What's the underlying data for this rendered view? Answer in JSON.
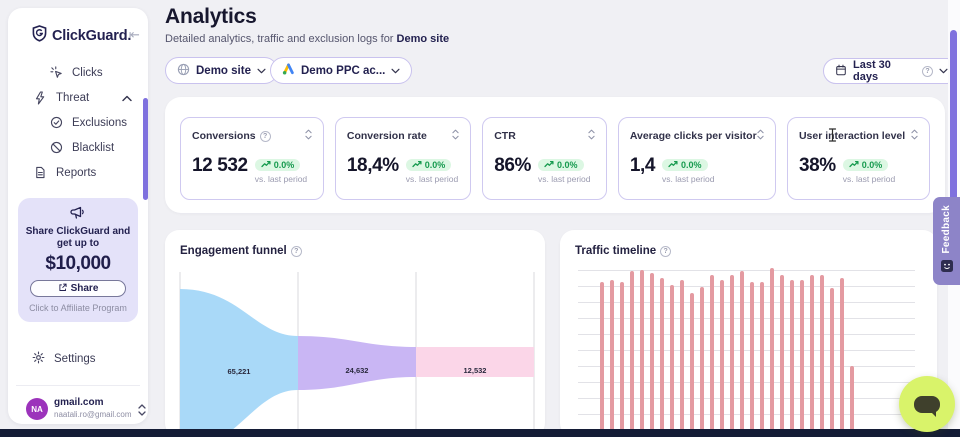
{
  "app": {
    "logo_text": "ClickGuard."
  },
  "sidebar": {
    "nav": [
      {
        "id": "clicks",
        "label": "Clicks",
        "icon": "clicks-icon",
        "indent": true
      },
      {
        "id": "threat",
        "label": "Threat",
        "icon": "threat-icon",
        "expanded": true
      },
      {
        "id": "exclusions",
        "label": "Exclusions",
        "icon": "exclusions-icon",
        "indent": true
      },
      {
        "id": "blacklist",
        "label": "Blacklist",
        "icon": "blacklist-icon",
        "indent": true
      },
      {
        "id": "reports",
        "label": "Reports",
        "icon": "reports-icon"
      }
    ],
    "promo": {
      "line1": "Share ClickGuard and",
      "line2": "get up to",
      "amount": "$10,000",
      "share_label": "Share",
      "affiliate_label": "Click to Affiliate Program"
    },
    "settings_label": "Settings",
    "account": {
      "initials": "NA",
      "name": "gmail.com",
      "email": "naatali.ro@gmail.com"
    }
  },
  "header": {
    "title": "Analytics",
    "subtitle_prefix": "Detailed analytics, traffic and exclusion logs for ",
    "subtitle_bold": "Demo site"
  },
  "filters": {
    "site_label": "Demo site",
    "ppc_label": "Demo PPC ac...",
    "date_label": "Last 30 days"
  },
  "stats": [
    {
      "label": "Conversions",
      "has_info": true,
      "value": "12 532",
      "change": "0.0%",
      "period": "vs. last period"
    },
    {
      "label": "Conversion rate",
      "has_info": false,
      "value": "18,4%",
      "change": "0.0%",
      "period": "vs. last period"
    },
    {
      "label": "CTR",
      "has_info": false,
      "value": "86%",
      "change": "0.0%",
      "period": "vs. last period"
    },
    {
      "label": "Average clicks per visitor",
      "has_info": false,
      "value": "1,4",
      "change": "0.0%",
      "period": "vs. last period"
    },
    {
      "label": "User interaction level",
      "has_info": false,
      "value": "38%",
      "change": "0.0%",
      "period": "vs. last period"
    }
  ],
  "feedback_label": "Feedback",
  "chart_data": [
    {
      "type": "funnel",
      "title": "Engagement funnel",
      "stages": [
        {
          "label": "65,221",
          "value": 65221,
          "color": "#a9d9f8"
        },
        {
          "label": "24,632",
          "value": 24632,
          "color": "#c9b6f4"
        },
        {
          "label": "12,532",
          "value": 12532,
          "color": "#fbd6e8"
        }
      ],
      "gridlines": "vertical",
      "legend": "none"
    },
    {
      "type": "bar",
      "title": "Traffic timeline",
      "bar_color": "#e49aa1",
      "gridlines": "horizontal",
      "x_tick_labels_visible": false,
      "y_tick_labels_visible": false,
      "values_percent_of_plot": [
        4,
        92,
        93,
        92,
        98,
        99,
        97,
        94,
        90,
        93,
        85,
        89,
        96,
        93,
        96,
        98,
        92,
        92,
        100,
        96,
        93,
        93,
        96,
        96,
        88,
        94,
        42
      ]
    }
  ],
  "colors": {
    "accent_purple": "#7f71de",
    "navy": "#232150",
    "page_bg": "#f0f0f4",
    "card_border": "#cfc9f0",
    "badge_green_bg": "#dcf7e3",
    "badge_green_text": "#169a4e",
    "promo_bg": "#e4e2f9",
    "feedback_bg": "#8d84c8",
    "chat_bg": "#d9f36a",
    "avatar_bg": "#9c33bb",
    "bar_pink": "#e49aa1"
  }
}
